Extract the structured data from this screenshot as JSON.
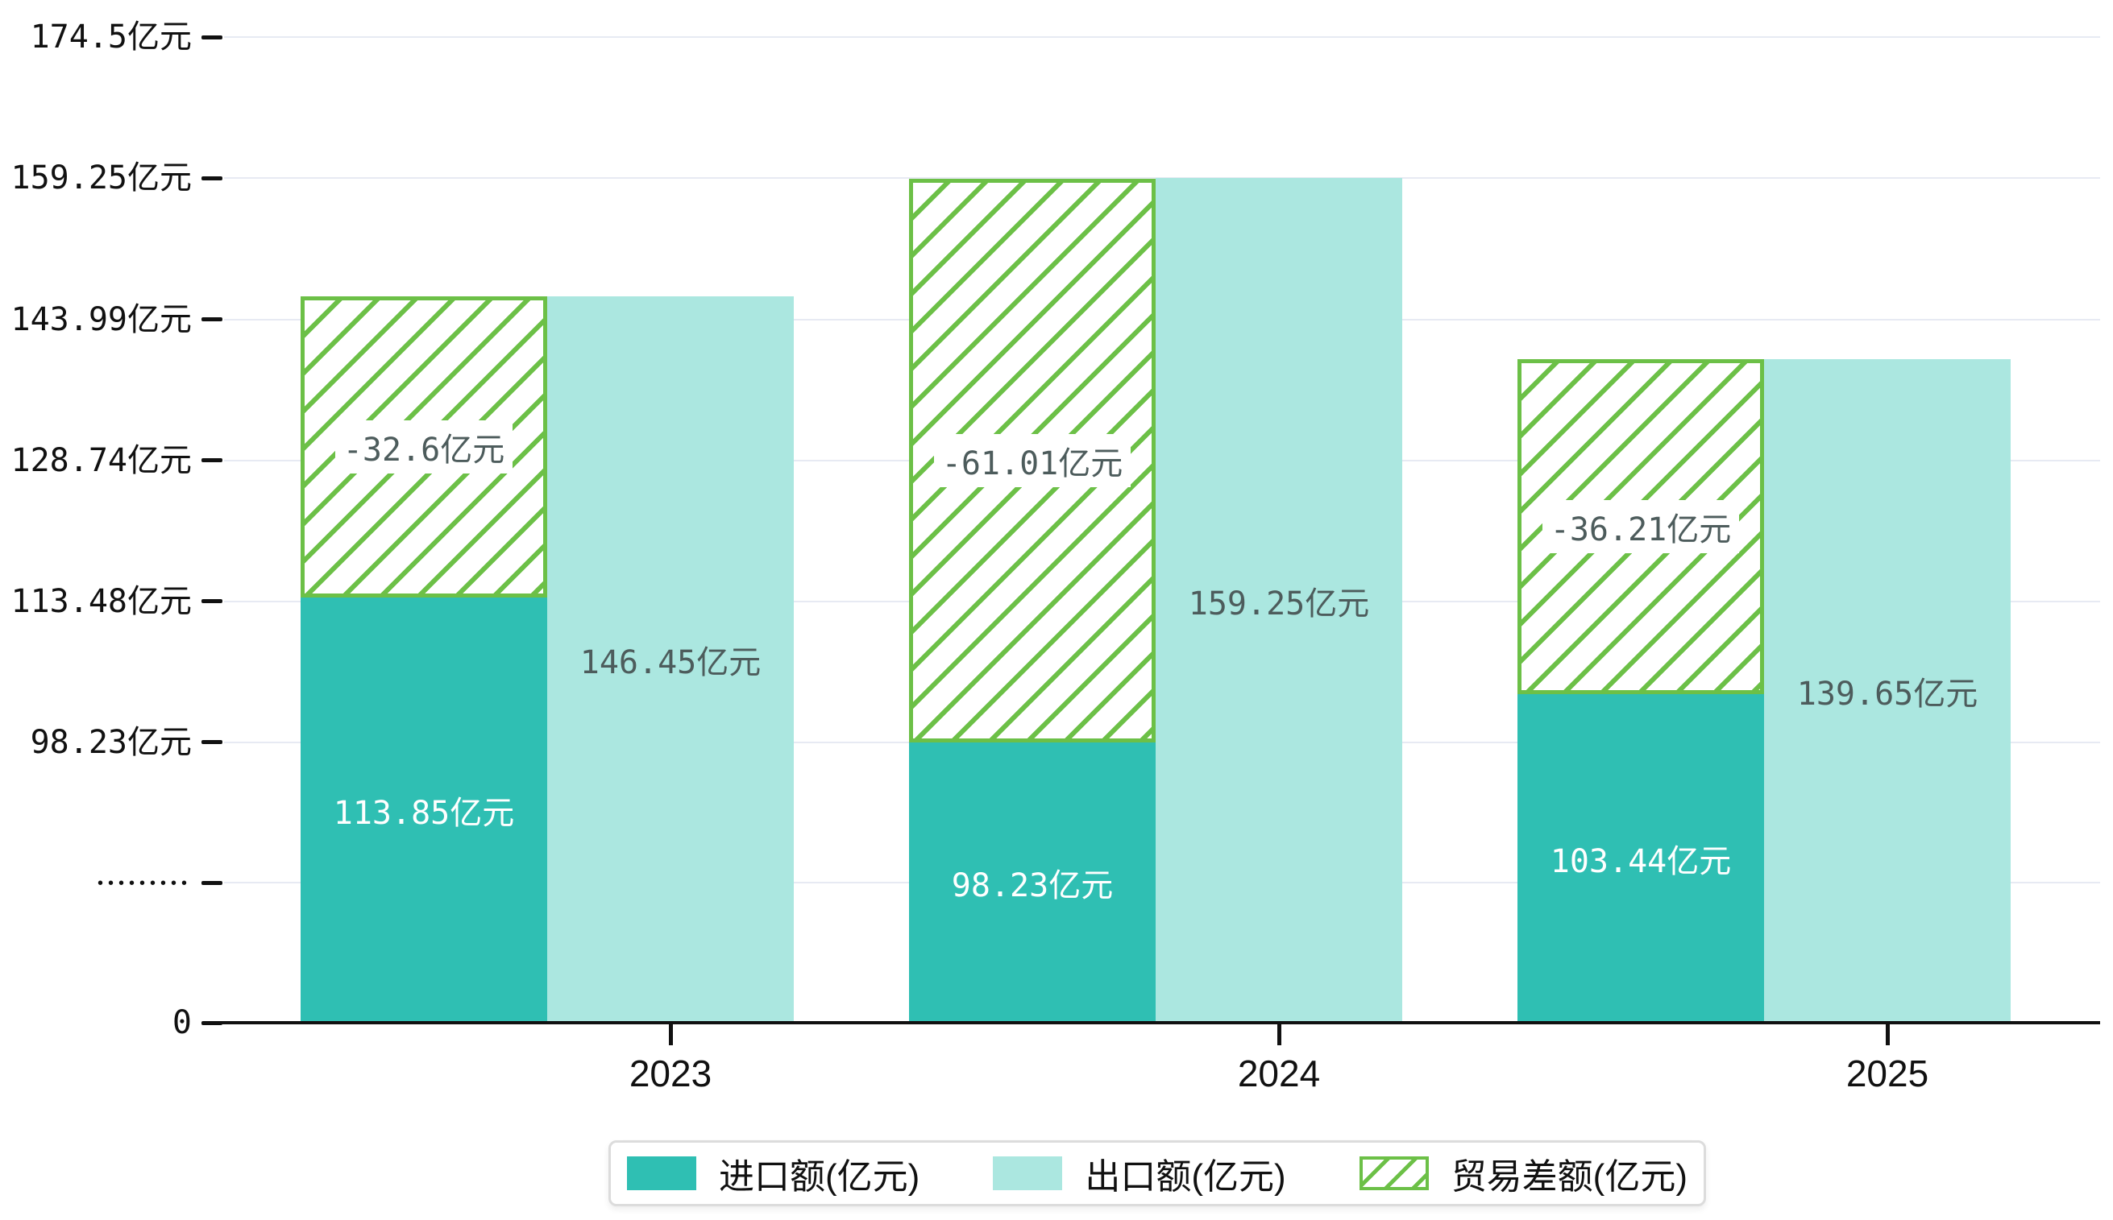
{
  "colors": {
    "import": "#2fbfb3",
    "export": "#abe7e0",
    "balance": "#6cc047",
    "grid": "#e7eaf3",
    "axis_text": "#111111",
    "value_text": "#4d5c5c"
  },
  "chart_data": {
    "type": "bar",
    "categories": [
      "2023",
      "2024",
      "2025"
    ],
    "series": [
      {
        "name": "进口额(亿元)",
        "role": "import",
        "color": "#2fbfb3",
        "values": [
          113.85,
          98.23,
          103.44
        ],
        "labels": [
          "113.85亿元",
          "98.23亿元",
          "103.44亿元"
        ]
      },
      {
        "name": "出口额(亿元)",
        "role": "export",
        "color": "#abe7e0",
        "values": [
          146.45,
          159.25,
          139.65
        ],
        "labels": [
          "146.45亿元",
          "159.25亿元",
          "139.65亿元"
        ]
      },
      {
        "name": "贸易差额(亿元)",
        "role": "balance",
        "color": "#6cc047",
        "style": "hatched",
        "values": [
          -32.6,
          -61.01,
          -36.21
        ],
        "labels": [
          "-32.6亿元",
          "-61.01亿元",
          "-36.21亿元"
        ]
      }
    ],
    "y_axis": {
      "unit": "亿元",
      "axis_break": true,
      "ticks": [
        {
          "label": "174.5亿元",
          "value": 174.5
        },
        {
          "label": "159.25亿元",
          "value": 159.25
        },
        {
          "label": "143.99亿元",
          "value": 143.99
        },
        {
          "label": "128.74亿元",
          "value": 128.74
        },
        {
          "label": "113.48亿元",
          "value": 113.48
        },
        {
          "label": "98.23亿元",
          "value": 98.23
        },
        {
          "label": "•••••••••",
          "value": null
        },
        {
          "label": "0",
          "value": 0
        }
      ]
    },
    "x_axis": {
      "tick_labels": [
        "2023",
        "2024",
        "2025"
      ]
    },
    "grid": true,
    "legend_position": "bottom"
  },
  "legend": {
    "items": [
      {
        "label": "进口额(亿元)",
        "swatch": "import"
      },
      {
        "label": "出口额(亿元)",
        "swatch": "export"
      },
      {
        "label": "贸易差额(亿元)",
        "swatch": "balance-hatched"
      }
    ]
  }
}
